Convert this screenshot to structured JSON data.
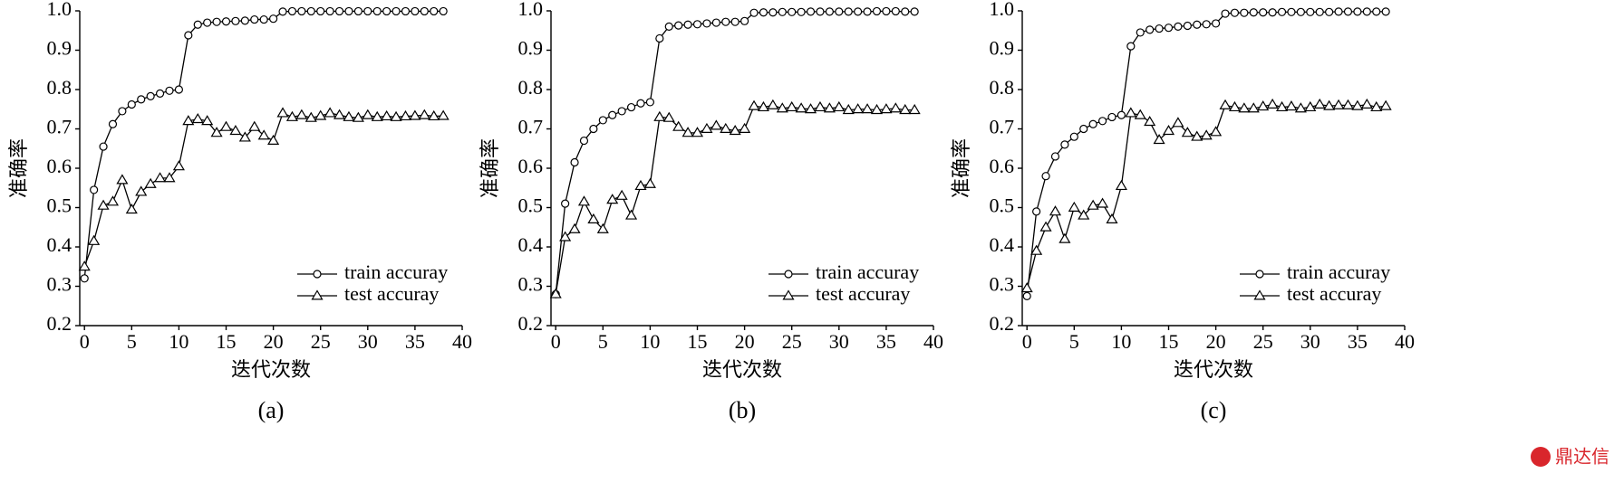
{
  "chart_data": [
    {
      "type": "line",
      "ylabel": "准确率",
      "xlabel": "迭代次数",
      "caption": "(a)",
      "x": [
        0,
        1,
        2,
        3,
        4,
        5,
        6,
        7,
        8,
        9,
        10,
        11,
        12,
        13,
        14,
        15,
        16,
        17,
        18,
        19,
        20,
        21,
        22,
        23,
        24,
        25,
        26,
        27,
        28,
        29,
        30,
        31,
        32,
        33,
        34,
        35,
        36,
        37,
        38
      ],
      "series": [
        {
          "name": "train accuray",
          "color": "#000000",
          "marker": "circle",
          "values": [
            0.32,
            0.545,
            0.655,
            0.712,
            0.745,
            0.762,
            0.775,
            0.783,
            0.79,
            0.797,
            0.8,
            0.938,
            0.965,
            0.97,
            0.972,
            0.973,
            0.974,
            0.975,
            0.978,
            0.978,
            0.98,
            0.998,
            0.999,
            0.999,
            0.999,
            0.999,
            0.999,
            0.999,
            0.999,
            0.999,
            0.999,
            0.999,
            0.999,
            0.999,
            0.999,
            0.999,
            0.999,
            0.999,
            0.999
          ]
        },
        {
          "name": "test accuray",
          "color": "#000000",
          "marker": "triangle",
          "values": [
            0.35,
            0.415,
            0.505,
            0.515,
            0.57,
            0.495,
            0.54,
            0.56,
            0.575,
            0.575,
            0.605,
            0.72,
            0.725,
            0.72,
            0.69,
            0.705,
            0.695,
            0.678,
            0.705,
            0.683,
            0.67,
            0.74,
            0.73,
            0.735,
            0.728,
            0.733,
            0.74,
            0.735,
            0.73,
            0.728,
            0.735,
            0.73,
            0.732,
            0.73,
            0.732,
            0.733,
            0.735,
            0.732,
            0.733
          ]
        }
      ],
      "xlim": [
        -0.5,
        40
      ],
      "xticks": [
        0,
        5,
        10,
        15,
        20,
        25,
        30,
        35,
        40
      ],
      "ylim": [
        0.2,
        1.0
      ],
      "yticks": [
        0.2,
        0.3,
        0.4,
        0.5,
        0.6,
        0.7,
        0.8,
        0.9,
        {
          "value": 1.0,
          "label": "1.0"
        }
      ],
      "legend": "lower right"
    },
    {
      "type": "line",
      "ylabel": "准确率",
      "xlabel": "迭代次数",
      "caption": "(b)",
      "x": [
        0,
        1,
        2,
        3,
        4,
        5,
        6,
        7,
        8,
        9,
        10,
        11,
        12,
        13,
        14,
        15,
        16,
        17,
        18,
        19,
        20,
        21,
        22,
        23,
        24,
        25,
        26,
        27,
        28,
        29,
        30,
        31,
        32,
        33,
        34,
        35,
        36,
        37,
        38
      ],
      "series": [
        {
          "name": "train accuray",
          "color": "#000000",
          "marker": "circle",
          "values": [
            0.28,
            0.51,
            0.615,
            0.67,
            0.7,
            0.722,
            0.735,
            0.745,
            0.755,
            0.765,
            0.768,
            0.93,
            0.96,
            0.963,
            0.965,
            0.966,
            0.968,
            0.97,
            0.972,
            0.972,
            0.974,
            0.995,
            0.996,
            0.996,
            0.997,
            0.997,
            0.997,
            0.998,
            0.998,
            0.998,
            0.998,
            0.998,
            0.998,
            0.998,
            0.999,
            0.999,
            0.999,
            0.998,
            0.998
          ]
        },
        {
          "name": "test accuray",
          "color": "#000000",
          "marker": "triangle",
          "values": [
            0.28,
            0.425,
            0.445,
            0.515,
            0.47,
            0.445,
            0.52,
            0.53,
            0.48,
            0.555,
            0.56,
            0.73,
            0.728,
            0.705,
            0.69,
            0.69,
            0.7,
            0.708,
            0.7,
            0.695,
            0.7,
            0.758,
            0.755,
            0.76,
            0.752,
            0.755,
            0.752,
            0.75,
            0.755,
            0.752,
            0.755,
            0.748,
            0.75,
            0.75,
            0.748,
            0.75,
            0.752,
            0.748,
            0.748
          ]
        }
      ],
      "xlim": [
        -0.5,
        40
      ],
      "xticks": [
        0,
        5,
        10,
        15,
        20,
        25,
        30,
        35,
        40
      ],
      "ylim": [
        0.2,
        1.0
      ],
      "yticks": [
        0.2,
        0.3,
        0.4,
        0.5,
        0.6,
        0.7,
        0.8,
        0.9,
        {
          "value": 1.0,
          "label": "1.0"
        }
      ],
      "legend": "lower right"
    },
    {
      "type": "line",
      "ylabel": "准确率",
      "xlabel": "迭代次数",
      "caption": "(c)",
      "x": [
        0,
        1,
        2,
        3,
        4,
        5,
        6,
        7,
        8,
        9,
        10,
        11,
        12,
        13,
        14,
        15,
        16,
        17,
        18,
        19,
        20,
        21,
        22,
        23,
        24,
        25,
        26,
        27,
        28,
        29,
        30,
        31,
        32,
        33,
        34,
        35,
        36,
        37,
        38
      ],
      "series": [
        {
          "name": "train accuray",
          "color": "#000000",
          "marker": "circle",
          "values": [
            0.275,
            0.49,
            0.58,
            0.63,
            0.66,
            0.68,
            0.7,
            0.712,
            0.72,
            0.73,
            0.735,
            0.91,
            0.945,
            0.952,
            0.955,
            0.957,
            0.96,
            0.962,
            0.965,
            0.966,
            0.968,
            0.993,
            0.995,
            0.995,
            0.996,
            0.996,
            0.996,
            0.997,
            0.997,
            0.997,
            0.997,
            0.997,
            0.997,
            0.998,
            0.998,
            0.998,
            0.998,
            0.998,
            0.998
          ]
        },
        {
          "name": "test accuray",
          "color": "#000000",
          "marker": "triangle",
          "values": [
            0.295,
            0.39,
            0.45,
            0.49,
            0.42,
            0.5,
            0.48,
            0.505,
            0.51,
            0.47,
            0.555,
            0.74,
            0.735,
            0.718,
            0.672,
            0.695,
            0.715,
            0.69,
            0.68,
            0.683,
            0.692,
            0.76,
            0.755,
            0.752,
            0.752,
            0.757,
            0.762,
            0.755,
            0.757,
            0.752,
            0.755,
            0.762,
            0.758,
            0.76,
            0.76,
            0.758,
            0.762,
            0.755,
            0.758
          ]
        }
      ],
      "xlim": [
        -0.5,
        40
      ],
      "xticks": [
        0,
        5,
        10,
        15,
        20,
        25,
        30,
        35,
        40
      ],
      "ylim": [
        0.2,
        1.0
      ],
      "yticks": [
        0.2,
        0.3,
        0.4,
        0.5,
        0.6,
        0.7,
        0.8,
        0.9,
        {
          "value": 1.0,
          "label": "1.0"
        }
      ],
      "legend": "lower right"
    }
  ],
  "watermark": "鼎达信"
}
